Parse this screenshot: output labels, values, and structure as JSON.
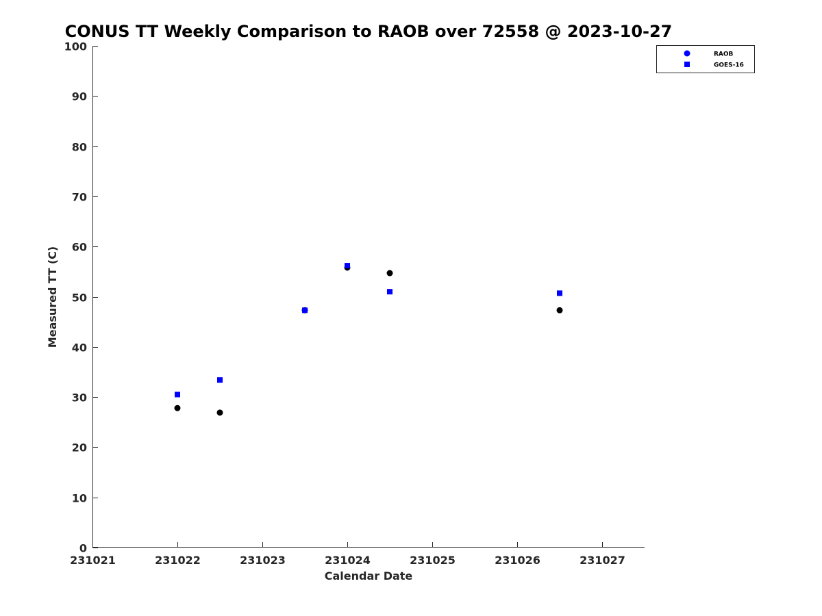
{
  "chart_data": {
    "type": "scatter",
    "title": "CONUS TT Weekly Comparison to RAOB over 72558 @ 2023-10-27",
    "xlabel": "Calendar Date",
    "ylabel": "Measured TT (C)",
    "xlim": [
      231021,
      231027.5
    ],
    "ylim": [
      0,
      100
    ],
    "xticks": [
      231021,
      231022,
      231023,
      231024,
      231025,
      231026,
      231027
    ],
    "xtick_labels": [
      "231021",
      "231022",
      "231023",
      "231024",
      "231025",
      "231026",
      "231027"
    ],
    "yticks": [
      0,
      10,
      20,
      30,
      40,
      50,
      60,
      70,
      80,
      90,
      100
    ],
    "ytick_labels": [
      "0",
      "10",
      "20",
      "30",
      "40",
      "50",
      "60",
      "70",
      "80",
      "90",
      "100"
    ],
    "grid": false,
    "legend_position": "top-right",
    "legend_swatch_color": "#0000ff",
    "series": [
      {
        "name": "RAOB",
        "marker": "circle",
        "color": "#000000",
        "x": [
          231022,
          231022.5,
          231023.5,
          231024,
          231024.5,
          231026.5
        ],
        "y": [
          27.8,
          26.9,
          47.3,
          55.8,
          54.7,
          47.3
        ]
      },
      {
        "name": "GOES-16",
        "marker": "square",
        "color": "#0000ff",
        "x": [
          231022,
          231022.5,
          231023.5,
          231024,
          231024.5,
          231026.5
        ],
        "y": [
          30.5,
          33.4,
          47.3,
          56.2,
          51.0,
          50.7
        ]
      }
    ]
  }
}
